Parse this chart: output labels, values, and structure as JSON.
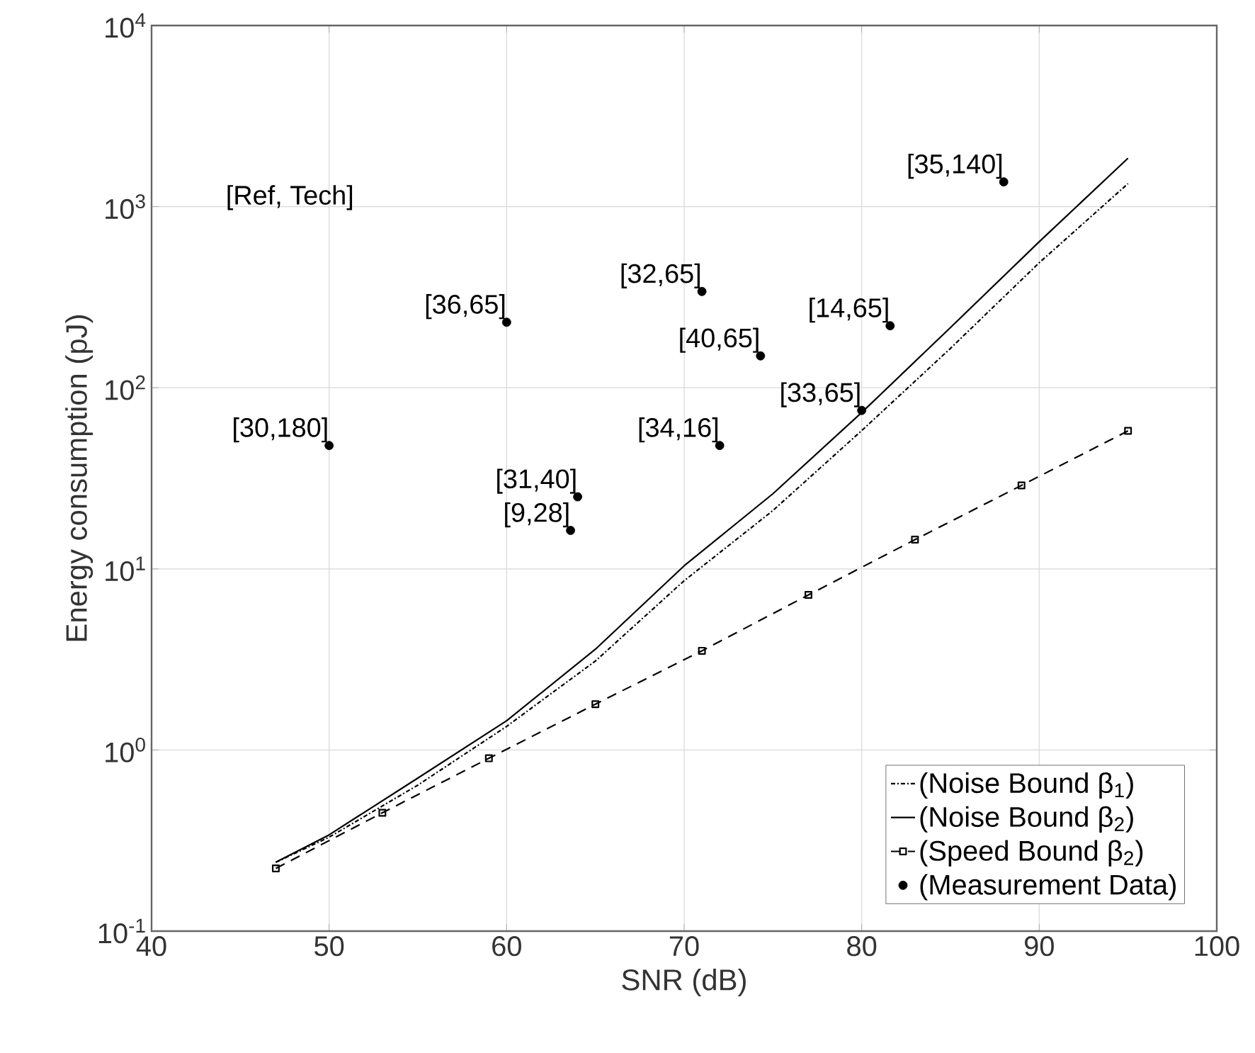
{
  "chart_data": {
    "type": "line",
    "xlabel": "SNR (dB)",
    "ylabel": "Energy consumption (pJ)",
    "log": "y",
    "grid": true,
    "legend": "bottom right",
    "xlim": [
      40,
      100
    ],
    "xticks": [
      40,
      50,
      60,
      70,
      80,
      90,
      100
    ],
    "ylim": [
      0.1,
      10000
    ],
    "yticks": [
      {
        "value": 0.1,
        "label": "10$^{-1}$"
      },
      {
        "value": 1,
        "label": "10$^{0}$"
      },
      {
        "value": 10,
        "label": "10$^{1}$"
      },
      {
        "value": 100,
        "label": "10$^{2}$"
      },
      {
        "value": 1000,
        "label": "10$^{3}$"
      },
      {
        "value": 10000,
        "label": "10$^{4}$"
      }
    ],
    "series": [
      {
        "name": "(Noise Bound β$_{1}$)",
        "color": "#000000",
        "line_style": "dashdot",
        "marker": "none",
        "x": [
          47,
          50,
          55,
          60,
          65,
          70,
          75,
          80,
          85,
          90,
          95
        ],
        "values": [
          0.24,
          0.33,
          0.64,
          1.35,
          3.1,
          8.6,
          21,
          58,
          165,
          490,
          1340
        ]
      },
      {
        "name": "(Noise Bound β$_{2}$)",
        "type": "line",
        "color": "#000000",
        "line_style": "solid",
        "marker": "none",
        "x": [
          47,
          50,
          55,
          60,
          65,
          70,
          75,
          80,
          85,
          90,
          95
        ],
        "values": [
          0.24,
          0.34,
          0.7,
          1.45,
          3.6,
          10.4,
          26,
          73,
          215,
          640,
          1850
        ]
      },
      {
        "name": "(Speed Bound β$_{2}$)",
        "type": "line",
        "color": "#000000",
        "line_style": "dashed",
        "marker": "square",
        "x": [
          47,
          53,
          59,
          65,
          71,
          77,
          83,
          89,
          95
        ],
        "values": [
          0.222,
          0.45,
          0.9,
          1.79,
          3.53,
          7.18,
          14.5,
          28.9,
          57.8
        ]
      },
      {
        "name": "(Measurement Data)",
        "type": "scatter",
        "color": "#000000",
        "marker": "circle",
        "x": [
          50,
          60,
          64,
          63.6,
          71,
          74.3,
          81.6,
          80,
          72,
          88
        ],
        "values": [
          48,
          230,
          25,
          16.3,
          340,
          150,
          220,
          75,
          48,
          1370
        ]
      }
    ],
    "annotations": [
      "[Ref, Tech]",
      {
        "text": "[30,180]",
        "x": 50,
        "y": 48
      },
      {
        "text": "[36,65]",
        "x": 60,
        "y": 230
      },
      {
        "text": "[31,40]",
        "x": 64,
        "y": 25
      },
      {
        "text": "[9,28]",
        "x": 63.6,
        "y": 16.3
      },
      {
        "text": "[32,65]",
        "x": 71,
        "y": 340
      },
      {
        "text": "[40,65]",
        "x": 74.3,
        "y": 150
      },
      {
        "text": "[14,65]",
        "x": 81.6,
        "y": 220
      },
      {
        "text": "[33,65]",
        "x": 80,
        "y": 75
      },
      {
        "text": "[34,16]",
        "x": 72,
        "y": 48
      },
      {
        "text": "[35,140]",
        "x": 88,
        "y": 1370
      }
    ]
  }
}
